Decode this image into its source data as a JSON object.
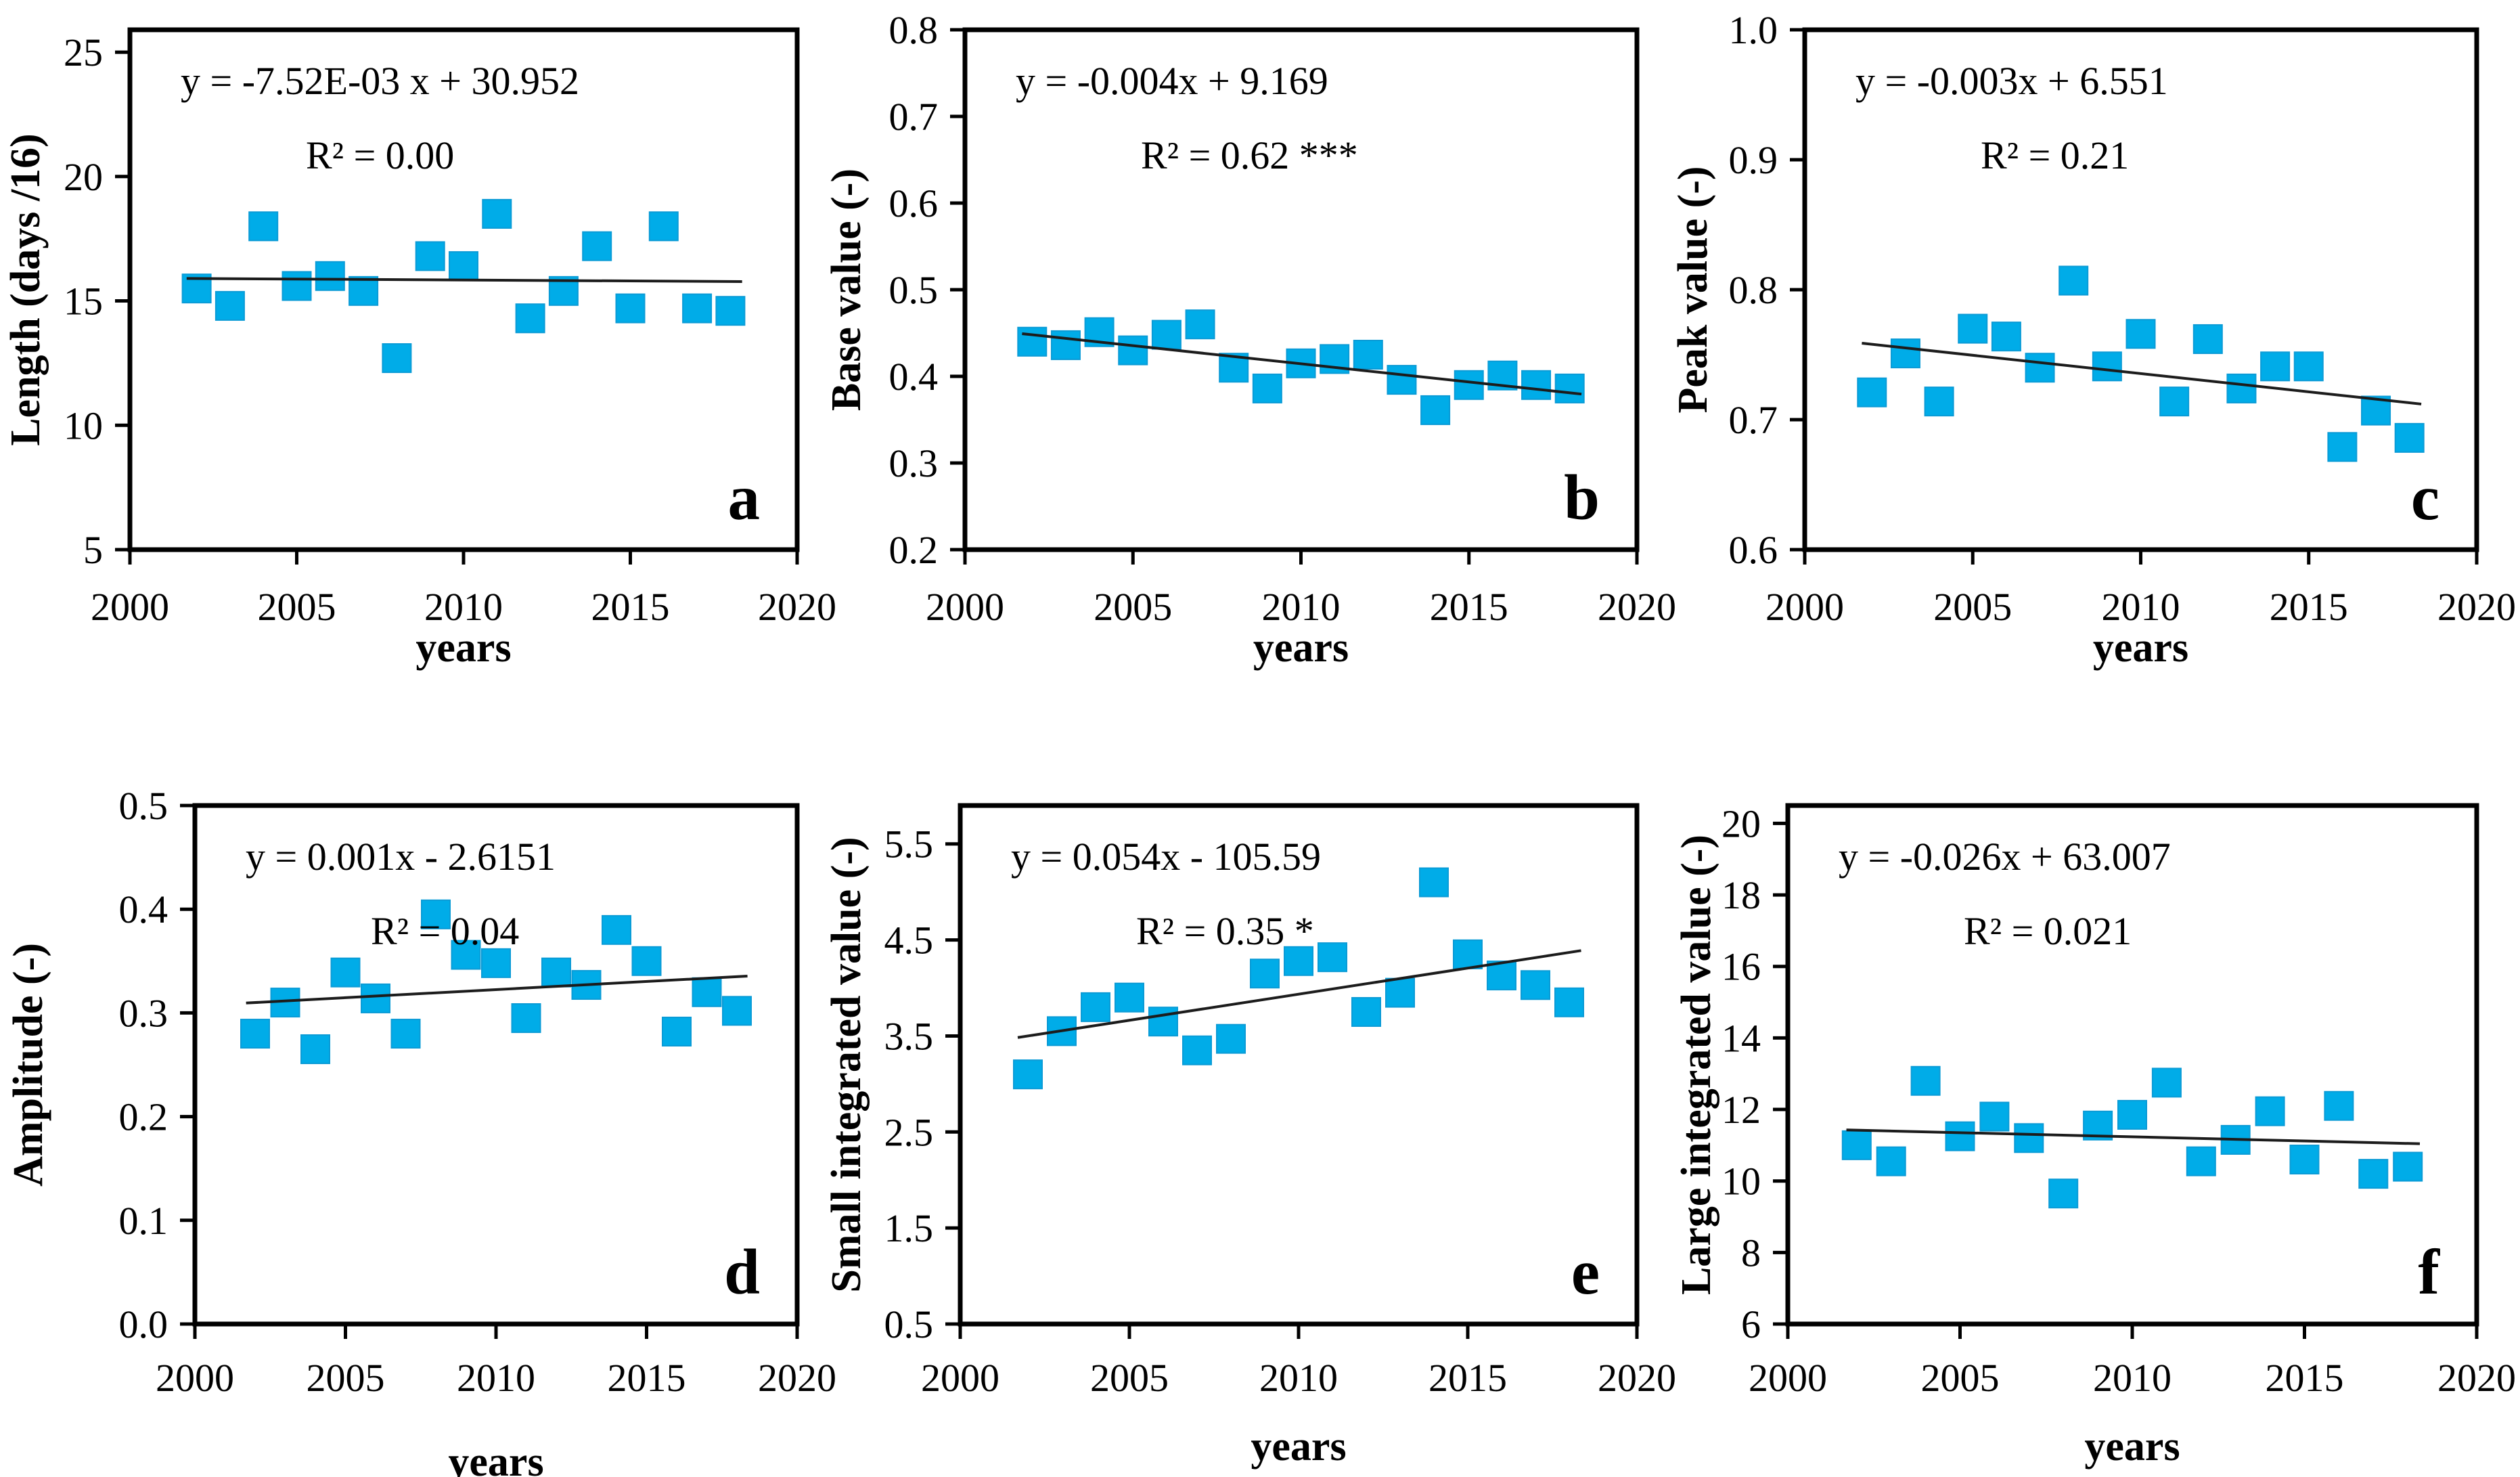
{
  "figure": {
    "marker_color": "#00ACE8",
    "marker_border_color": "#0A9BD6",
    "trend_line_color": "#1c1c1c",
    "axis_color": "#000000",
    "background_color": "#ffffff",
    "x_axis_label": "years"
  },
  "chart_data": [
    {
      "type": "scatter",
      "letter": "a",
      "equation": "y = -7.52E-03 x + 30.952",
      "r2_label": "R² = 0.00",
      "xlabel": "years",
      "ylabel": "Length (days /16)",
      "xlim": [
        2000,
        2020
      ],
      "xticks": [
        2000,
        2005,
        2010,
        2015,
        2020
      ],
      "ylim": [
        5,
        25.9
      ],
      "yticks": [
        5,
        10,
        15,
        20,
        25
      ],
      "ytick_decimals": 0,
      "x": [
        2002,
        2003,
        2004,
        2005,
        2006,
        2007,
        2008,
        2009,
        2010,
        2011,
        2012,
        2013,
        2014,
        2015,
        2016,
        2017,
        2018
      ],
      "y": [
        15.5,
        14.8,
        18.0,
        15.6,
        16.0,
        15.4,
        12.7,
        16.8,
        16.4,
        18.5,
        14.3,
        15.4,
        17.2,
        14.7,
        18.0,
        14.7,
        14.6
      ],
      "trend": {
        "x1": 2002,
        "y1": 15.9,
        "x2": 2018,
        "y2": 15.78
      }
    },
    {
      "type": "scatter",
      "letter": "b",
      "equation": "y = -0.004x + 9.169",
      "r2_label": "R² = 0.62 ***",
      "xlabel": "years",
      "ylabel": "Base value (-)",
      "xlim": [
        2000,
        2020
      ],
      "xticks": [
        2000,
        2005,
        2010,
        2015,
        2020
      ],
      "ylim": [
        0.2,
        0.8
      ],
      "yticks": [
        0.2,
        0.3,
        0.4,
        0.5,
        0.6,
        0.7,
        0.8
      ],
      "ytick_decimals": 1,
      "x": [
        2002,
        2003,
        2004,
        2005,
        2006,
        2007,
        2008,
        2009,
        2010,
        2011,
        2012,
        2013,
        2014,
        2015,
        2016,
        2017,
        2018
      ],
      "y": [
        0.44,
        0.436,
        0.451,
        0.43,
        0.448,
        0.46,
        0.41,
        0.386,
        0.415,
        0.42,
        0.425,
        0.396,
        0.361,
        0.39,
        0.401,
        0.39,
        0.386
      ],
      "trend": {
        "x1": 2002,
        "y1": 0.448,
        "x2": 2018,
        "y2": 0.381
      }
    },
    {
      "type": "scatter",
      "letter": "c",
      "equation": "y = -0.003x + 6.551",
      "r2_label": "R² = 0.21",
      "xlabel": "years",
      "ylabel": "Peak value (-)",
      "xlim": [
        2000,
        2020
      ],
      "xticks": [
        2000,
        2005,
        2010,
        2015,
        2020
      ],
      "ylim": [
        0.6,
        1.0
      ],
      "yticks": [
        0.6,
        0.7,
        0.8,
        0.9,
        1.0
      ],
      "ytick_decimals": 1,
      "x": [
        2002,
        2003,
        2004,
        2005,
        2006,
        2007,
        2008,
        2009,
        2010,
        2011,
        2012,
        2013,
        2014,
        2015,
        2016,
        2017,
        2018
      ],
      "y": [
        0.721,
        0.751,
        0.714,
        0.77,
        0.764,
        0.74,
        0.807,
        0.741,
        0.766,
        0.714,
        0.762,
        0.724,
        0.741,
        0.741,
        0.679,
        0.707,
        0.686
      ],
      "trend": {
        "x1": 2002,
        "y1": 0.758,
        "x2": 2018,
        "y2": 0.713
      }
    },
    {
      "type": "scatter",
      "letter": "d",
      "equation": "y = 0.001x - 2.6151",
      "r2_label": "R² = 0.04",
      "xlabel": "years",
      "ylabel": "Amplitude (-)",
      "xlim": [
        2000,
        2020
      ],
      "xticks": [
        2000,
        2005,
        2010,
        2015,
        2020
      ],
      "ylim": [
        0.0,
        0.5
      ],
      "yticks": [
        0.0,
        0.1,
        0.2,
        0.3,
        0.4,
        0.5
      ],
      "ytick_decimals": 1,
      "x": [
        2002,
        2003,
        2004,
        2005,
        2006,
        2007,
        2008,
        2009,
        2010,
        2011,
        2012,
        2013,
        2014,
        2015,
        2016,
        2017,
        2018
      ],
      "y": [
        0.28,
        0.31,
        0.265,
        0.339,
        0.314,
        0.28,
        0.395,
        0.356,
        0.348,
        0.295,
        0.339,
        0.327,
        0.38,
        0.35,
        0.282,
        0.32,
        0.302
      ],
      "trend": {
        "x1": 2002,
        "y1": 0.31,
        "x2": 2018,
        "y2": 0.335
      }
    },
    {
      "type": "scatter",
      "letter": "e",
      "equation": "y = 0.054x - 105.59",
      "r2_label": "R² = 0.35 *",
      "xlabel": "years",
      "ylabel": "Small integrated value (-)",
      "xlim": [
        2000,
        2020
      ],
      "xticks": [
        2000,
        2005,
        2010,
        2015,
        2020
      ],
      "ylim": [
        0.5,
        5.9
      ],
      "yticks": [
        0.5,
        1.5,
        2.5,
        3.5,
        4.5,
        5.5
      ],
      "ytick_decimals": 1,
      "x": [
        2002,
        2003,
        2004,
        2005,
        2006,
        2007,
        2008,
        2009,
        2010,
        2011,
        2012,
        2013,
        2014,
        2015,
        2016,
        2017,
        2018
      ],
      "y": [
        3.1,
        3.55,
        3.8,
        3.9,
        3.65,
        3.35,
        3.47,
        4.15,
        4.28,
        4.32,
        3.75,
        3.95,
        5.1,
        4.35,
        4.13,
        4.03,
        3.85
      ],
      "trend": {
        "x1": 2002,
        "y1": 3.5,
        "x2": 2018,
        "y2": 4.37
      }
    },
    {
      "type": "scatter",
      "letter": "f",
      "equation": "y = -0.026x + 63.007",
      "r2_label": "R² = 0.021",
      "xlabel": "years",
      "ylabel": "Large integrated value (-)",
      "xlim": [
        2000,
        2020
      ],
      "xticks": [
        2000,
        2005,
        2010,
        2015,
        2020
      ],
      "ylim": [
        6,
        20.5
      ],
      "yticks": [
        6,
        8,
        10,
        12,
        14,
        16,
        18,
        20
      ],
      "ytick_decimals": 0,
      "x": [
        2002,
        2003,
        2004,
        2005,
        2006,
        2007,
        2008,
        2009,
        2010,
        2011,
        2012,
        2013,
        2014,
        2015,
        2016,
        2017,
        2018
      ],
      "y": [
        11.0,
        10.55,
        12.8,
        11.25,
        11.8,
        11.2,
        9.65,
        11.55,
        11.85,
        12.75,
        10.55,
        11.15,
        11.95,
        10.6,
        12.1,
        10.2,
        10.4
      ],
      "trend": {
        "x1": 2002,
        "y1": 11.42,
        "x2": 2018,
        "y2": 11.05
      }
    }
  ]
}
